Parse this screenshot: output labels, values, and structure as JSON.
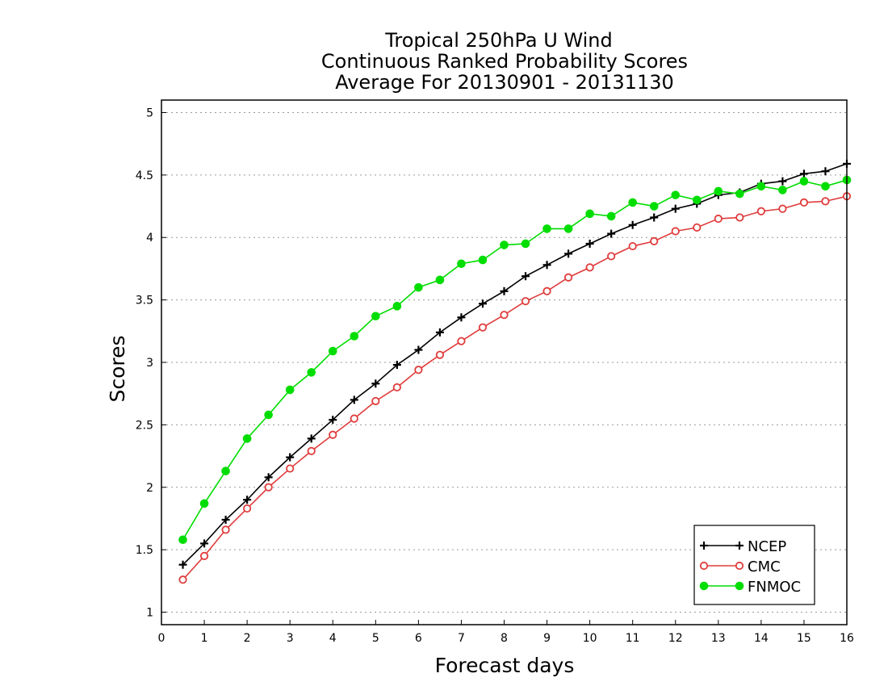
{
  "chart_data": {
    "type": "line",
    "title": [
      "Tropical 250hPa U Wind",
      "Continuous Ranked Probability Scores",
      "Average For 20130901 - 20131130"
    ],
    "xlabel": "Forecast days",
    "ylabel": "Scores",
    "xlim": [
      0,
      16
    ],
    "ylim": [
      0.9,
      5.1
    ],
    "xticks": [
      "0",
      "1",
      "2",
      "3",
      "4",
      "5",
      "6",
      "7",
      "8",
      "9",
      "10",
      "11",
      "12",
      "13",
      "14",
      "15",
      "16"
    ],
    "yticks": [
      "1",
      "1.5",
      "2",
      "2.5",
      "3",
      "3.5",
      "4",
      "4.5",
      "5"
    ],
    "grid": "horizontal-dotted",
    "legend_position": "bottom-right",
    "x": [
      0.5,
      1,
      1.5,
      2,
      2.5,
      3,
      3.5,
      4,
      4.5,
      5,
      5.5,
      6,
      6.5,
      7,
      7.5,
      8,
      8.5,
      9,
      9.5,
      10,
      10.5,
      11,
      11.5,
      12,
      12.5,
      13,
      13.5,
      14,
      14.5,
      15,
      15.5,
      16
    ],
    "series": [
      {
        "name": "NCEP",
        "color": "#000000",
        "marker": "plus",
        "values": [
          1.38,
          1.55,
          1.74,
          1.9,
          2.08,
          2.24,
          2.39,
          2.54,
          2.7,
          2.83,
          2.98,
          3.1,
          3.24,
          3.36,
          3.47,
          3.57,
          3.69,
          3.78,
          3.87,
          3.95,
          4.03,
          4.1,
          4.16,
          4.23,
          4.27,
          4.34,
          4.36,
          4.43,
          4.45,
          4.51,
          4.53,
          4.59
        ]
      },
      {
        "name": "CMC",
        "color": "#e03c3c",
        "marker": "open-circle",
        "values": [
          1.26,
          1.45,
          1.66,
          1.83,
          2.0,
          2.15,
          2.29,
          2.42,
          2.55,
          2.69,
          2.8,
          2.94,
          3.06,
          3.17,
          3.28,
          3.38,
          3.49,
          3.57,
          3.68,
          3.76,
          3.85,
          3.93,
          3.97,
          4.05,
          4.08,
          4.15,
          4.16,
          4.21,
          4.23,
          4.28,
          4.29,
          4.33
        ]
      },
      {
        "name": "FNMOC",
        "color": "#00dd00",
        "marker": "filled-circle",
        "values": [
          1.58,
          1.87,
          2.13,
          2.39,
          2.58,
          2.78,
          2.92,
          3.09,
          3.21,
          3.37,
          3.45,
          3.6,
          3.66,
          3.79,
          3.82,
          3.94,
          3.95,
          4.07,
          4.07,
          4.19,
          4.17,
          4.28,
          4.25,
          4.34,
          4.3,
          4.37,
          4.35,
          4.41,
          4.38,
          4.45,
          4.41,
          4.46
        ]
      }
    ]
  }
}
